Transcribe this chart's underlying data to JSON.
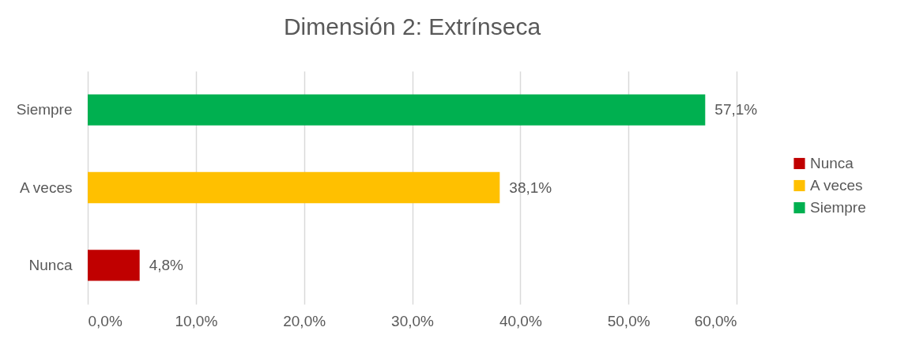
{
  "chart_data": {
    "type": "bar",
    "orientation": "horizontal",
    "title": "Dimensión 2: Extrínseca",
    "categories": [
      "Siempre",
      "A veces",
      "Nunca"
    ],
    "series": [
      {
        "name": "Nunca",
        "color": "#c00000",
        "values": [
          null,
          null,
          4.8
        ],
        "value_labels": [
          null,
          null,
          "4,8%"
        ]
      },
      {
        "name": "A veces",
        "color": "#ffc000",
        "values": [
          null,
          38.1,
          null
        ],
        "value_labels": [
          null,
          "38,1%",
          null
        ]
      },
      {
        "name": "Siempre",
        "color": "#00b050",
        "values": [
          57.1,
          null,
          null
        ],
        "value_labels": [
          "57,1%",
          null,
          null
        ]
      }
    ],
    "xlim": [
      0,
      60
    ],
    "xticks": [
      {
        "value": 0,
        "label": "0,0%"
      },
      {
        "value": 10,
        "label": "10,0%"
      },
      {
        "value": 20,
        "label": "20,0%"
      },
      {
        "value": 30,
        "label": "30,0%"
      },
      {
        "value": 40,
        "label": "40,0%"
      },
      {
        "value": 50,
        "label": "50,0%"
      },
      {
        "value": 60,
        "label": "60,0%"
      }
    ],
    "grid": "x",
    "legend": "right"
  }
}
